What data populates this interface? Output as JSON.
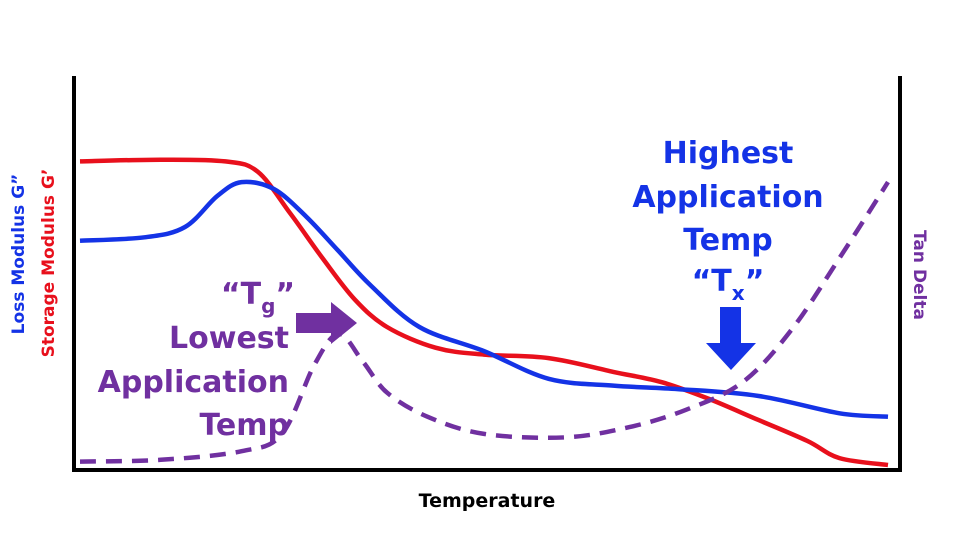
{
  "chart_data": {
    "type": "line",
    "title": "",
    "xlabel": "Temperature",
    "ylabel_left_1": "Loss Modulus G”",
    "ylabel_left_2": "Storage Modulus G’",
    "ylabel_right": "Tan Delta",
    "axes_ticks": "none",
    "grid": false,
    "legend": "none (axis titles colored to match series)",
    "colors": {
      "loss_modulus": "#1433e6",
      "storage_modulus": "#e8101c",
      "tan_delta": "#7030a0",
      "axis": "#000000"
    },
    "x_range": [
      0,
      100
    ],
    "y_range": [
      0,
      100
    ],
    "series": [
      {
        "key": "storage",
        "style": "solid",
        "color": "#e8101c",
        "points": [
          [
            0,
            88
          ],
          [
            10,
            88.5
          ],
          [
            18,
            88
          ],
          [
            22,
            85
          ],
          [
            26,
            73
          ],
          [
            30,
            60
          ],
          [
            34,
            48
          ],
          [
            38,
            40
          ],
          [
            44,
            34
          ],
          [
            50,
            32
          ],
          [
            58,
            31
          ],
          [
            66,
            27
          ],
          [
            72,
            24
          ],
          [
            78,
            19
          ],
          [
            84,
            13
          ],
          [
            90,
            7
          ],
          [
            94,
            2
          ],
          [
            100,
            0
          ]
        ]
      },
      {
        "key": "loss",
        "style": "solid",
        "color": "#1433e6",
        "points": [
          [
            0,
            65
          ],
          [
            8,
            66
          ],
          [
            13,
            69
          ],
          [
            17,
            78
          ],
          [
            20,
            82
          ],
          [
            24,
            80
          ],
          [
            28,
            72
          ],
          [
            32,
            62
          ],
          [
            36,
            52
          ],
          [
            42,
            40
          ],
          [
            50,
            33
          ],
          [
            58,
            25
          ],
          [
            66,
            23
          ],
          [
            74,
            22
          ],
          [
            84,
            20
          ],
          [
            94,
            15
          ],
          [
            100,
            14
          ]
        ]
      },
      {
        "key": "tan_delta",
        "style": "dashed",
        "color": "#7030a0",
        "points": [
          [
            0,
            1
          ],
          [
            10,
            1.5
          ],
          [
            20,
            4
          ],
          [
            25,
            9
          ],
          [
            29,
            29
          ],
          [
            32,
            38
          ],
          [
            35,
            30
          ],
          [
            38,
            21
          ],
          [
            43,
            14
          ],
          [
            50,
            9
          ],
          [
            60,
            8
          ],
          [
            68,
            11
          ],
          [
            75,
            16
          ],
          [
            82,
            24
          ],
          [
            88,
            39
          ],
          [
            94,
            60
          ],
          [
            100,
            82
          ]
        ]
      }
    ],
    "annotations": {
      "tg": {
        "line1_main": "“T",
        "line1_sub": "g",
        "line1_end": "”",
        "line2": "Lowest",
        "line3": "Application",
        "line4": "Temp",
        "arrow": "right",
        "color": "#7030a0"
      },
      "tx": {
        "line1": "Highest",
        "line2": "Application",
        "line3": "Temp",
        "line4_main": "“T",
        "line4_sub": "x",
        "line4_end": "”",
        "arrow": "down",
        "color": "#1433e6"
      }
    }
  }
}
